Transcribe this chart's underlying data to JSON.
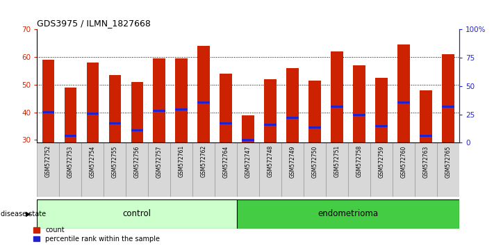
{
  "title": "GDS3975 / ILMN_1827668",
  "samples": [
    "GSM572752",
    "GSM572753",
    "GSM572754",
    "GSM572755",
    "GSM572756",
    "GSM572757",
    "GSM572761",
    "GSM572762",
    "GSM572764",
    "GSM572747",
    "GSM572748",
    "GSM572749",
    "GSM572750",
    "GSM572751",
    "GSM572758",
    "GSM572759",
    "GSM572760",
    "GSM572763",
    "GSM572765"
  ],
  "counts": [
    59,
    49,
    58,
    53.5,
    51,
    59.5,
    59.5,
    64,
    54,
    39,
    52,
    56,
    51.5,
    62,
    57,
    52.5,
    64.5,
    48,
    61
  ],
  "percentile_values": [
    40,
    31.5,
    39.5,
    36,
    33.5,
    40.5,
    41,
    43.5,
    36,
    30,
    35.5,
    38,
    34.5,
    42,
    39,
    35,
    43.5,
    31.5,
    42
  ],
  "group_labels": [
    "control",
    "endometrioma"
  ],
  "group_counts": [
    9,
    10
  ],
  "bar_color": "#cc2200",
  "blue_color": "#2222cc",
  "bar_width": 0.55,
  "ylim_left": [
    29,
    70
  ],
  "ylim_right": [
    0,
    100
  ],
  "yticks_left": [
    30,
    40,
    50,
    60,
    70
  ],
  "yticks_right": [
    0,
    25,
    50,
    75,
    100
  ],
  "ytick_labels_right": [
    "0",
    "25",
    "50",
    "75",
    "100%"
  ],
  "bg_color": "#ffffff",
  "label_color_left": "#cc2200",
  "label_color_right": "#2222cc",
  "disease_state_label": "disease state",
  "legend_count": "count",
  "legend_pct": "percentile rank within the sample"
}
